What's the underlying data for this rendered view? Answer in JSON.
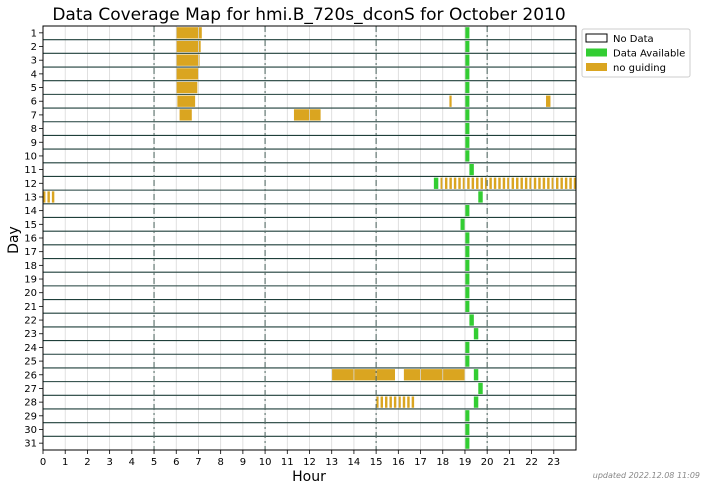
{
  "chart_data": {
    "type": "timeline",
    "title": "Data Coverage Map for hmi.B_720s_dconS for October 2010",
    "xlabel": "Hour",
    "ylabel": "Day",
    "xlim": [
      0,
      24
    ],
    "x_ticks": [
      0,
      1,
      2,
      3,
      4,
      5,
      6,
      7,
      8,
      9,
      10,
      11,
      12,
      13,
      14,
      15,
      16,
      17,
      18,
      19,
      20,
      21,
      22,
      23
    ],
    "days": [
      1,
      2,
      3,
      4,
      5,
      6,
      7,
      8,
      9,
      10,
      11,
      12,
      13,
      14,
      15,
      16,
      17,
      18,
      19,
      20,
      21,
      22,
      23,
      24,
      25,
      26,
      27,
      28,
      29,
      30,
      31
    ],
    "dashed_hours": [
      5,
      10,
      15,
      20
    ],
    "legend": [
      {
        "label": "No Data",
        "color": "#ffffff"
      },
      {
        "label": "Data Available",
        "color": "#32cd32"
      },
      {
        "label": "no guiding",
        "color": "#daa520"
      }
    ],
    "legend_position": "outside-top-right",
    "colors": {
      "no_data": "#ffffff",
      "data": "#32cd32",
      "no_guiding": "#daa520",
      "grid": "#1f3f3a"
    },
    "series": [
      {
        "name": "Data Available",
        "intervals": [
          [
            1,
            19.0,
            19.2
          ],
          [
            2,
            19.0,
            19.2
          ],
          [
            3,
            19.0,
            19.2
          ],
          [
            4,
            19.0,
            19.2
          ],
          [
            5,
            19.0,
            19.2
          ],
          [
            6,
            19.0,
            19.2
          ],
          [
            7,
            19.0,
            19.2
          ],
          [
            8,
            19.0,
            19.2
          ],
          [
            9,
            19.0,
            19.2
          ],
          [
            10,
            19.0,
            19.2
          ],
          [
            11,
            19.2,
            19.4
          ],
          [
            12,
            17.6,
            17.8
          ],
          [
            13,
            19.6,
            19.8
          ],
          [
            14,
            19.0,
            19.2
          ],
          [
            15,
            18.8,
            19.0
          ],
          [
            16,
            19.0,
            19.2
          ],
          [
            17,
            19.0,
            19.2
          ],
          [
            18,
            19.0,
            19.2
          ],
          [
            19,
            19.0,
            19.2
          ],
          [
            20,
            19.0,
            19.2
          ],
          [
            21,
            19.0,
            19.2
          ],
          [
            22,
            19.2,
            19.4
          ],
          [
            23,
            19.4,
            19.6
          ],
          [
            24,
            19.0,
            19.2
          ],
          [
            25,
            19.0,
            19.2
          ],
          [
            26,
            19.4,
            19.6
          ],
          [
            27,
            19.6,
            19.8
          ],
          [
            28,
            19.4,
            19.6
          ],
          [
            29,
            19.0,
            19.2
          ],
          [
            30,
            19.0,
            19.2
          ],
          [
            31,
            19.0,
            19.2
          ]
        ]
      },
      {
        "name": "no guiding",
        "intervals": [
          [
            1,
            6.0,
            7.15
          ],
          [
            2,
            6.0,
            7.1
          ],
          [
            3,
            6.0,
            7.05
          ],
          [
            4,
            6.0,
            7.0
          ],
          [
            5,
            6.0,
            6.95
          ],
          [
            6,
            6.05,
            6.85
          ],
          [
            6,
            18.3,
            18.4
          ],
          [
            6,
            22.65,
            22.85
          ],
          [
            7,
            6.15,
            6.7
          ],
          [
            7,
            11.3,
            12.5
          ],
          [
            26,
            13.0,
            15.85
          ],
          [
            26,
            16.25,
            19.0
          ],
          [
            12,
            17.9,
            24.0,
            "striped"
          ],
          [
            13,
            0.0,
            0.6,
            "striped"
          ],
          [
            28,
            15.0,
            16.75,
            "striped"
          ]
        ]
      }
    ]
  },
  "footnote": "updated 2022.12.08 11:09"
}
